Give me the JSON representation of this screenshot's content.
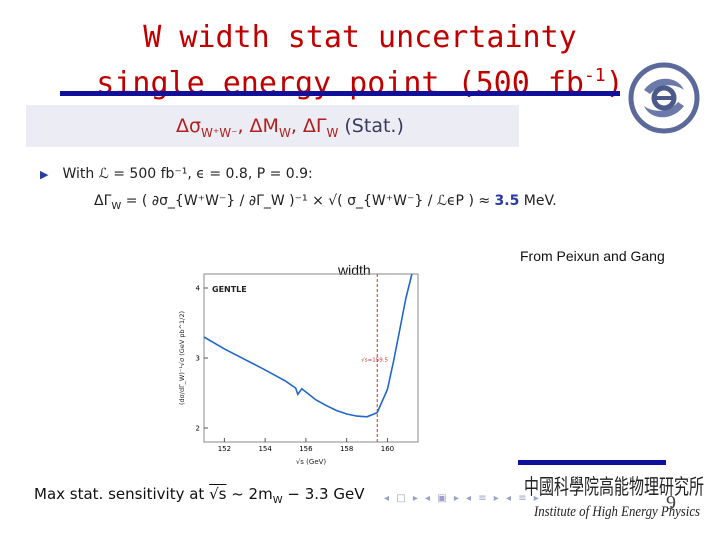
{
  "title": {
    "line1": "W width stat uncertainty",
    "line2_prefix": "single energy point (500 fb",
    "line2_sup": "-1",
    "line2_suffix": ")"
  },
  "colors": {
    "title": "#c00000",
    "rule": "#10109a",
    "accent_blue": "#2a3aa0",
    "curve": "#2266cc"
  },
  "header_box": {
    "part1": "Δσ",
    "sub1": "W⁺W⁻",
    "part2": ", ΔM",
    "sub2": "W",
    "part3": ", ΔΓ",
    "sub3": "W",
    "part4": " (Stat.)"
  },
  "bullet": {
    "icon": "triangle-bullet-icon",
    "text": "With ℒ = 500 fb⁻¹, ϵ = 0.8, P = 0.9:"
  },
  "formula": {
    "left": "ΔΓ",
    "left_sub": "W",
    "middle": " = ( ∂σ_{W⁺W⁻} / ∂Γ_W )⁻¹ × √( σ_{W⁺W⁻} / ℒϵP ) ≈ ",
    "value": "3.5",
    "unit": " MeV."
  },
  "labels": {
    "width": "width",
    "credit": "From Peixun and Gang"
  },
  "plot": {
    "legend": "GENTLE",
    "ylabel": "(dσ/dΓ_W)⁻¹√σ (GeV pb^1/2)",
    "xlabel": "√s (GeV)",
    "marker_label": "√s=159.5",
    "x_ticks": [
      "152",
      "154",
      "156",
      "158",
      "160"
    ],
    "y_ticks": [
      "2",
      "3",
      "4"
    ]
  },
  "chart_data": {
    "type": "line",
    "title": "",
    "xlabel": "√s (GeV)",
    "ylabel": "(dσ/dΓ_W)⁻¹√σ (GeV pb^1/2)",
    "xlim": [
      151,
      161.5
    ],
    "ylim": [
      1.8,
      4.2
    ],
    "series": [
      {
        "name": "GENTLE",
        "x": [
          151.0,
          152,
          153,
          154,
          155,
          155.5,
          155.6,
          155.8,
          156.5,
          157,
          157.5,
          158,
          158.5,
          159,
          159.5,
          160,
          160.3,
          160.6,
          160.9,
          161.2
        ],
        "y": [
          3.3,
          3.13,
          2.98,
          2.83,
          2.67,
          2.57,
          2.48,
          2.56,
          2.4,
          2.32,
          2.25,
          2.2,
          2.17,
          2.16,
          2.22,
          2.55,
          2.95,
          3.4,
          3.85,
          4.2
        ]
      }
    ],
    "marker": {
      "x": 159.5,
      "label": "√s=159.5"
    },
    "grid": false,
    "legend": "top-left"
  },
  "bottom": {
    "text_before": "Max stat. sensitivity at ",
    "sqrt_s": "√s",
    "text_after": " ~ 2m",
    "sub": "W",
    "tail": " − 3.3 GeV"
  },
  "nav_glyphs": "◂ □ ▸ ◂ ▣ ▸ ◂ ≡ ▸ ◂ ≡ ▸",
  "institute": {
    "chinese": "中國科學院高能物理研究所",
    "english": "Institute of High Energy Physics"
  },
  "page_number": "9"
}
